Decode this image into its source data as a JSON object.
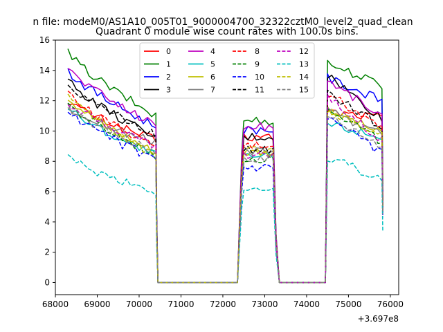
{
  "figure": {
    "suptitle": "n file: modeM0/AS1A10_005T01_9000004700_32322cztM0_level2_quad_clean",
    "offset_text": "+3.697e8"
  },
  "chart_data": {
    "type": "line",
    "title": "Quadrant 0 module wise count rates with 100.0s bins.",
    "xlabel": "",
    "ylabel": "",
    "xlim": [
      68000,
      76200
    ],
    "ylim": [
      -0.8,
      16
    ],
    "x_ticks": [
      68000,
      69000,
      70000,
      71000,
      72000,
      73000,
      74000,
      75000,
      76000
    ],
    "y_ticks": [
      0,
      2,
      4,
      6,
      8,
      10,
      12,
      14,
      16
    ],
    "x_tick_labels": [
      "68000",
      "69000",
      "70000",
      "71000",
      "72000",
      "73000",
      "74000",
      "75000",
      "76000"
    ],
    "y_tick_labels": [
      "0",
      "2",
      "4",
      "6",
      "8",
      "10",
      "12",
      "14",
      "16"
    ],
    "grid": false,
    "legend_position": "top-center",
    "segments": [
      {
        "start": 68300,
        "end": 70400
      },
      {
        "start": 72500,
        "end": 73200
      },
      {
        "start": 74500,
        "end": 75800
      }
    ],
    "series": [
      {
        "name": "0",
        "color": "#ff0000",
        "dash": "solid",
        "levels": [
          12.0,
          9.4,
          9.6,
          11.3,
          10.9
        ]
      },
      {
        "name": "1",
        "color": "#008000",
        "dash": "solid",
        "levels": [
          15.2,
          11.0,
          10.7,
          14.5,
          13.0
        ]
      },
      {
        "name": "2",
        "color": "#0000ff",
        "dash": "solid",
        "levels": [
          14.0,
          10.3,
          10.1,
          13.5,
          12.0
        ]
      },
      {
        "name": "3",
        "color": "#000000",
        "dash": "solid",
        "levels": [
          13.4,
          9.5,
          9.6,
          13.7,
          10.8
        ]
      },
      {
        "name": "4",
        "color": "#bf00bf",
        "dash": "solid",
        "levels": [
          14.2,
          10.4,
          10.3,
          13.4,
          11.0
        ]
      },
      {
        "name": "5",
        "color": "#00bfbf",
        "dash": "solid",
        "levels": [
          11.6,
          8.4,
          8.3,
          10.5,
          9.6
        ]
      },
      {
        "name": "6",
        "color": "#bfbf00",
        "dash": "solid",
        "levels": [
          12.3,
          8.6,
          8.6,
          11.5,
          9.8
        ]
      },
      {
        "name": "7",
        "color": "#808080",
        "dash": "solid",
        "levels": [
          11.6,
          9.2,
          8.7,
          11.3,
          9.9
        ]
      },
      {
        "name": "8",
        "color": "#ff0000",
        "dash": "dashed",
        "levels": [
          12.5,
          9.0,
          9.0,
          12.5,
          10.2
        ]
      },
      {
        "name": "9",
        "color": "#008000",
        "dash": "dashed",
        "levels": [
          11.8,
          8.4,
          8.2,
          11.6,
          9.3
        ]
      },
      {
        "name": "10",
        "color": "#0000ff",
        "dash": "dashed",
        "levels": [
          11.3,
          8.1,
          7.5,
          10.8,
          8.6
        ]
      },
      {
        "name": "11",
        "color": "#000000",
        "dash": "dashed",
        "levels": [
          13.2,
          9.7,
          8.8,
          12.6,
          10.2
        ]
      },
      {
        "name": "12",
        "color": "#bf00bf",
        "dash": "dashed",
        "levels": [
          12.0,
          9.0,
          8.4,
          12.2,
          9.4
        ]
      },
      {
        "name": "13",
        "color": "#00bfbf",
        "dash": "dashed",
        "levels": [
          8.2,
          6.0,
          6.1,
          8.3,
          6.8
        ]
      },
      {
        "name": "14",
        "color": "#bfbf00",
        "dash": "dashed",
        "levels": [
          12.3,
          8.4,
          8.7,
          11.4,
          9.7
        ]
      },
      {
        "name": "15",
        "color": "#808080",
        "dash": "dashed",
        "levels": [
          11.5,
          8.6,
          8.2,
          11.0,
          9.0
        ]
      }
    ]
  }
}
